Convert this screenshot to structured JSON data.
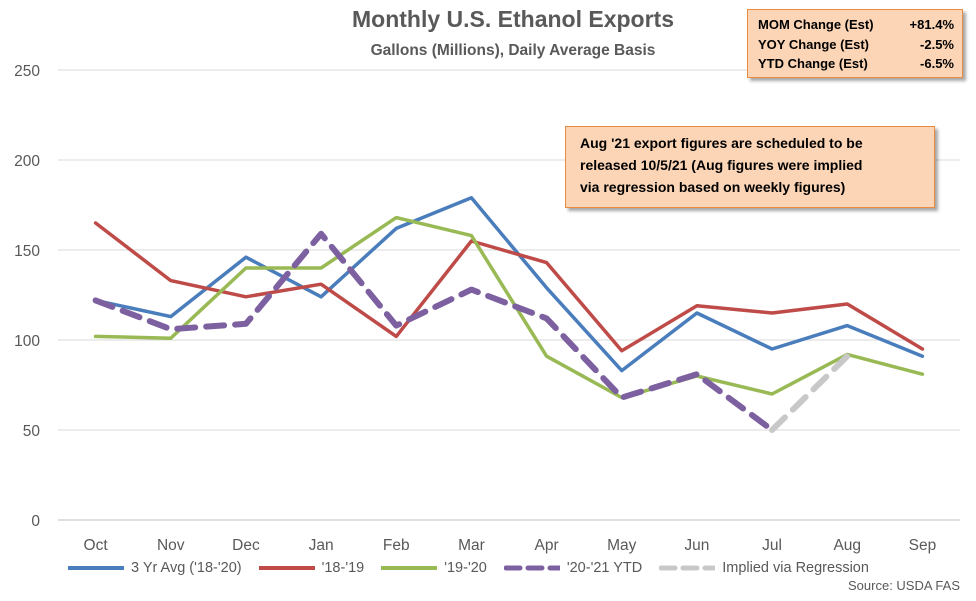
{
  "chart_data": {
    "type": "line",
    "title": "Monthly U.S. Ethanol Exports",
    "subtitle": "Gallons (Millions), Daily Average Basis",
    "categories": [
      "Oct",
      "Nov",
      "Dec",
      "Jan",
      "Feb",
      "Mar",
      "Apr",
      "May",
      "Jun",
      "Jul",
      "Aug",
      "Sep"
    ],
    "ylim": [
      0,
      250
    ],
    "yticks": [
      0,
      50,
      100,
      150,
      200,
      250
    ],
    "grid": true,
    "legend_position": "bottom",
    "series": [
      {
        "name": "3 Yr Avg ('18-'20)",
        "color": "#4a7dbb",
        "style": "solid",
        "values": [
          122,
          113,
          146,
          124,
          162,
          179,
          129,
          83,
          115,
          95,
          108,
          91
        ]
      },
      {
        "name": "'18-'19",
        "color": "#be4b48",
        "style": "solid",
        "values": [
          165,
          133,
          124,
          131,
          102,
          155,
          143,
          94,
          119,
          115,
          120,
          95
        ]
      },
      {
        "name": "'19-'20",
        "color": "#98b954",
        "style": "solid",
        "values": [
          102,
          101,
          140,
          140,
          168,
          158,
          91,
          68,
          80,
          70,
          92,
          81
        ]
      },
      {
        "name": "'20-'21 YTD",
        "color": "#7d60a0",
        "style": "dashed",
        "values": [
          122,
          106,
          109,
          159,
          108,
          128,
          112,
          68,
          81,
          50,
          null,
          null
        ]
      },
      {
        "name": "Implied via Regression",
        "color": "#c8c8c8",
        "style": "dashed",
        "values": [
          null,
          null,
          null,
          null,
          null,
          null,
          null,
          null,
          null,
          50,
          91,
          null
        ]
      }
    ]
  },
  "stat_box": [
    {
      "label": "MOM Change (Est)",
      "value": "+81.4%"
    },
    {
      "label": "YOY Change (Est)",
      "value": "-2.5%"
    },
    {
      "label": "YTD Change (Est)",
      "value": "-6.5%"
    }
  ],
  "note": {
    "line1": "Aug '21 export figures are scheduled to be",
    "line2": "released 10/5/21 (Aug figures were implied",
    "line3": "via regression based on weekly figures)"
  },
  "source": "Source: USDA FAS"
}
